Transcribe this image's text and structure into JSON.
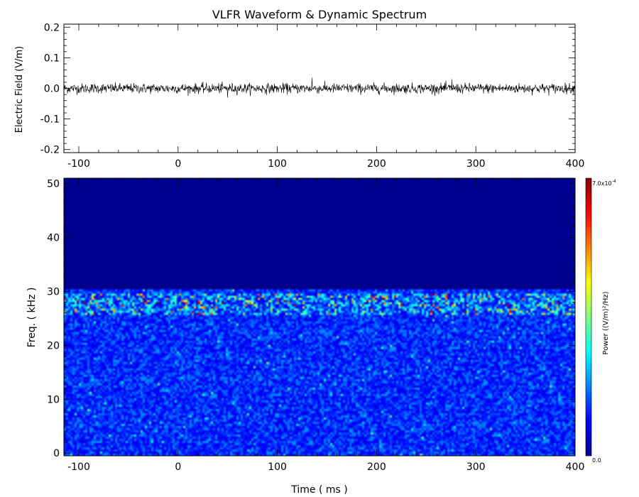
{
  "title": "VLFR Waveform & Dynamic Spectrum",
  "chart_data": [
    {
      "type": "line",
      "name": "waveform",
      "ylabel": "Electric Field  (V/m)",
      "xlabel": "",
      "xlim": [
        -115,
        400
      ],
      "ylim": [
        -0.21,
        0.21
      ],
      "x_ticks": [
        -100,
        0,
        100,
        200,
        300,
        400
      ],
      "x_tick_labels": [
        "-100",
        "0",
        "100",
        "200",
        "300",
        "400"
      ],
      "y_ticks": [
        -0.2,
        -0.1,
        0.0,
        0.1,
        0.2
      ],
      "y_tick_labels": [
        "-0.2",
        "-0.1",
        "0.0",
        "0.1",
        "0.2"
      ],
      "series_color": "#000000",
      "grid": false,
      "signal": {
        "mean": 0.0,
        "typical_amplitude": 0.018,
        "max_spike": 0.035,
        "spikes": [
          {
            "x": 135,
            "y": 0.035
          },
          {
            "x": 276,
            "y": 0.03
          },
          {
            "x": 50,
            "y": -0.03
          }
        ]
      }
    },
    {
      "type": "heatmap",
      "name": "dynamic-spectrum",
      "xlabel": "Time ( ms )",
      "ylabel": "Freq. ( kHz )",
      "xlim": [
        -115,
        400
      ],
      "ylim": [
        -0.5,
        51
      ],
      "x_ticks": [
        -100,
        0,
        100,
        200,
        300,
        400
      ],
      "x_tick_labels": [
        "-100",
        "0",
        "100",
        "200",
        "300",
        "400"
      ],
      "y_ticks": [
        0,
        10,
        20,
        30,
        40,
        50
      ],
      "y_tick_labels": [
        "0",
        "10",
        "20",
        "30",
        "40",
        "50"
      ],
      "colormap": "jet",
      "colorbar": {
        "label": "Power  ((V/m)²/Hz)",
        "min_label": "0.0",
        "max_label": "7.0x10",
        "max_exponent": "-4",
        "min": 0.0,
        "max": 0.0007
      },
      "features": [
        {
          "kind": "band",
          "freq_range": [
            0,
            30.5
          ],
          "description": "broadband noise"
        },
        {
          "kind": "enhanced-band",
          "freq_range": [
            25.5,
            29.5
          ]
        },
        {
          "kind": "empty",
          "freq_range": [
            31.5,
            51
          ]
        }
      ],
      "background_color": "#00008f"
    }
  ]
}
